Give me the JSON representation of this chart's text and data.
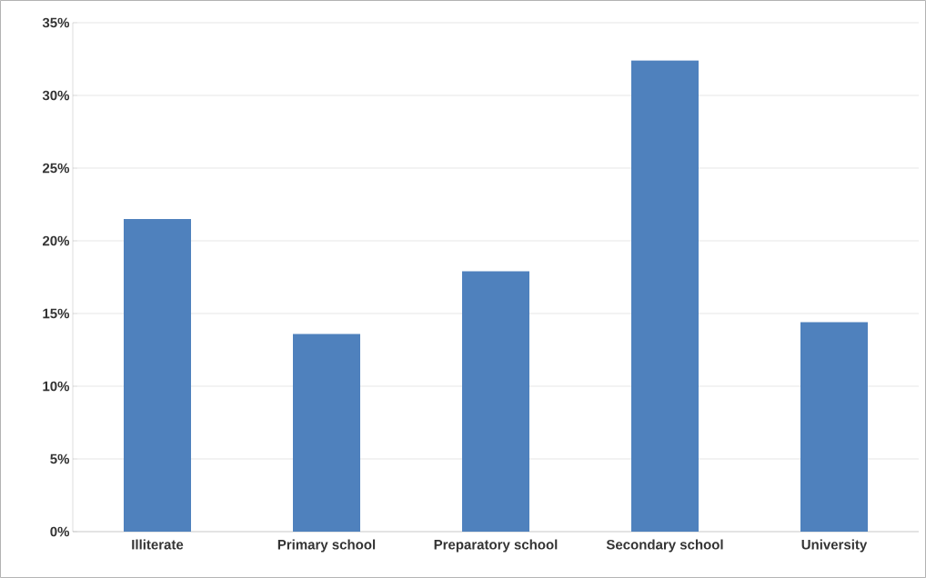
{
  "chart_data": {
    "type": "bar",
    "categories": [
      "Illiterate",
      "Primary school",
      "Preparatory school",
      "Secondary school",
      "University"
    ],
    "values": [
      21.5,
      13.6,
      17.9,
      32.4,
      14.4
    ],
    "color": "#4f81bd",
    "ylim": [
      0,
      35
    ],
    "yticks": [
      {
        "value": 0,
        "label": "0%"
      },
      {
        "value": 5,
        "label": "5%"
      },
      {
        "value": 10,
        "label": "10%"
      },
      {
        "value": 15,
        "label": "15%"
      },
      {
        "value": 20,
        "label": "20%"
      },
      {
        "value": 25,
        "label": "25%"
      },
      {
        "value": 30,
        "label": "30%"
      },
      {
        "value": 35,
        "label": "35%"
      }
    ],
    "grid": "y"
  }
}
